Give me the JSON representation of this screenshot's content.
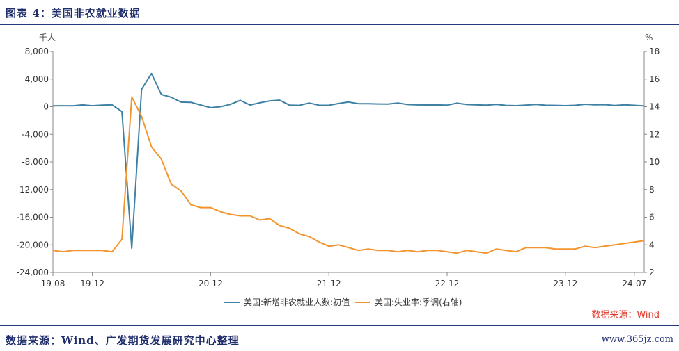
{
  "header": {
    "title": "图表 4：美国非农就业数据"
  },
  "footer": {
    "source": "数据来源：Wind、广发期货发展研究中心整理",
    "watermark": "www.365jz.com"
  },
  "chart_note": "数据来源：Wind",
  "colors": {
    "series1": "#3e81a3",
    "series2": "#f2952e",
    "axis": "#888888"
  },
  "chart_data": {
    "type": "line",
    "y_left": {
      "unit": "千人",
      "ylim": [
        -24000,
        8000
      ],
      "ticks": [
        "8,000",
        "4,000",
        "0",
        "-4,000",
        "-8,000",
        "-12,000",
        "-16,000",
        "-20,000",
        "-24,000"
      ]
    },
    "y_right": {
      "unit": "%",
      "ylim": [
        2,
        18
      ],
      "ticks": [
        "18",
        "16",
        "14",
        "12",
        "10",
        "8",
        "6",
        "4",
        "2"
      ]
    },
    "x_ticks": [
      "19-08",
      "19-12",
      "20-12",
      "21-12",
      "22-12",
      "23-12",
      "24-07"
    ],
    "x_start": "2019-08",
    "series": [
      {
        "name": "美国:新增非农就业人数:初值",
        "axis": "left",
        "values": [
          130,
          136,
          128,
          266,
          145,
          225,
          273,
          -701,
          -20500,
          2509,
          4800,
          1763,
          1371,
          661,
          638,
          245,
          -140,
          0,
          336,
          916,
          245,
          559,
          850,
          943,
          235,
          194,
          531,
          210,
          199,
          467,
          678,
          431,
          428,
          390,
          372,
          528,
          315,
          263,
          248,
          261,
          223,
          517,
          311,
          263,
          223,
          336,
          187,
          150,
          236,
          336,
          209,
          187,
          150,
          199,
          353,
          275,
          303,
          175,
          272,
          206,
          114
        ],
        "series_label": "美国:新增非农就业人数:初值"
      },
      {
        "name": "美国:失业率:季调(右轴)",
        "axis": "right",
        "values": [
          3.6,
          3.5,
          3.6,
          3.6,
          3.6,
          3.6,
          3.5,
          4.4,
          14.7,
          13.3,
          11.1,
          10.2,
          8.4,
          7.9,
          6.9,
          6.7,
          6.7,
          6.4,
          6.2,
          6.1,
          6.1,
          5.8,
          5.9,
          5.4,
          5.2,
          4.8,
          4.6,
          4.2,
          3.9,
          4.0,
          3.8,
          3.6,
          3.7,
          3.6,
          3.6,
          3.5,
          3.6,
          3.5,
          3.6,
          3.6,
          3.5,
          3.4,
          3.6,
          3.5,
          3.4,
          3.7,
          3.6,
          3.5,
          3.8,
          3.8,
          3.8,
          3.7,
          3.7,
          3.7,
          3.9,
          3.8,
          3.9,
          4.0,
          4.1,
          4.2,
          4.3
        ]
      }
    ]
  }
}
